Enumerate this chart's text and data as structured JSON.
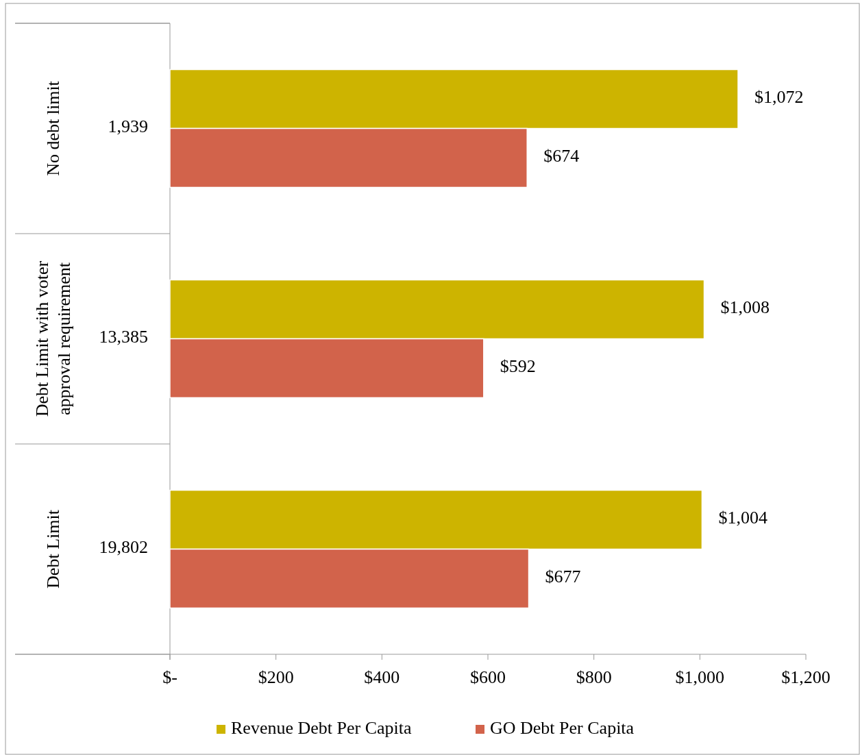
{
  "chart_data": {
    "type": "bar",
    "orientation": "horizontal",
    "categories": [
      "1,939",
      "13,385",
      "19,802"
    ],
    "series": [
      {
        "name": "Revenue Debt Per Capita",
        "color": "#cdb400",
        "values": [
          1072,
          1008,
          1004
        ],
        "value_labels": [
          "$1,072",
          "$1,008",
          "$1,004"
        ]
      },
      {
        "name": "GO Debt Per Capita",
        "color": "#d2634b",
        "values": [
          674,
          592,
          677
        ],
        "value_labels": [
          "$674",
          "$592",
          "$677"
        ]
      }
    ],
    "xlim": [
      0,
      1200
    ],
    "xticks": [
      {
        "value": 0,
        "label": "$-"
      },
      {
        "value": 200,
        "label": "$200"
      },
      {
        "value": 400,
        "label": "$400"
      },
      {
        "value": 600,
        "label": "$600"
      },
      {
        "value": 800,
        "label": "$800"
      },
      {
        "value": 1000,
        "label": "$1,000"
      },
      {
        "value": 1200,
        "label": "$1,200"
      }
    ],
    "annotations": [
      "No debt limit",
      "Debt Limit with voter\napproval requirement",
      "Debt Limit"
    ],
    "grid": false,
    "legend": "bottom"
  }
}
